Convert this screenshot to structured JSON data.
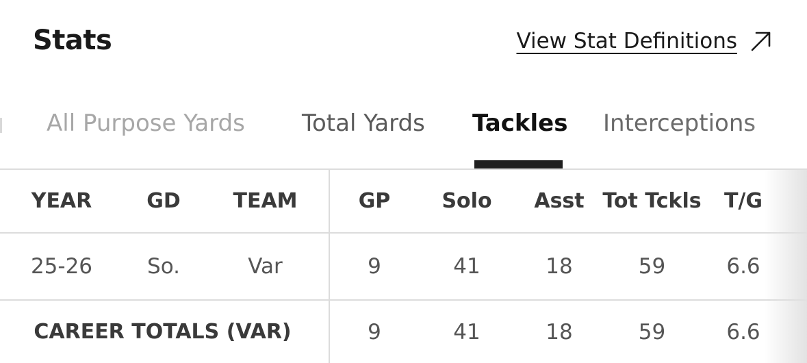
{
  "header": {
    "title": "Stats",
    "definitions_link": "View Stat Definitions",
    "link_icon": "arrow-up-right-icon"
  },
  "tabs": [
    {
      "label": "All Purpose Yards",
      "active": false
    },
    {
      "label": "Total Yards",
      "active": false
    },
    {
      "label": "Tackles",
      "active": true
    },
    {
      "label": "Interceptions",
      "active": false
    }
  ],
  "table": {
    "columns": [
      "YEAR",
      "GD",
      "TEAM",
      "GP",
      "Solo",
      "Asst",
      "Tot Tckls",
      "T/G"
    ],
    "rows": [
      {
        "year": "25-26",
        "gd": "So.",
        "team": "Var",
        "gp": "9",
        "solo": "41",
        "asst": "18",
        "tot": "59",
        "tg": "6.6"
      }
    ],
    "career": {
      "label": "CAREER TOTALS (VAR)",
      "gp": "9",
      "solo": "41",
      "asst": "18",
      "tot": "59",
      "tg": "6.6"
    }
  },
  "colors": {
    "active_tab": "#111111",
    "inactive_tab": "#5a5a5a",
    "indicator": "#1f1f1f",
    "divider": "#dcdcdc"
  }
}
